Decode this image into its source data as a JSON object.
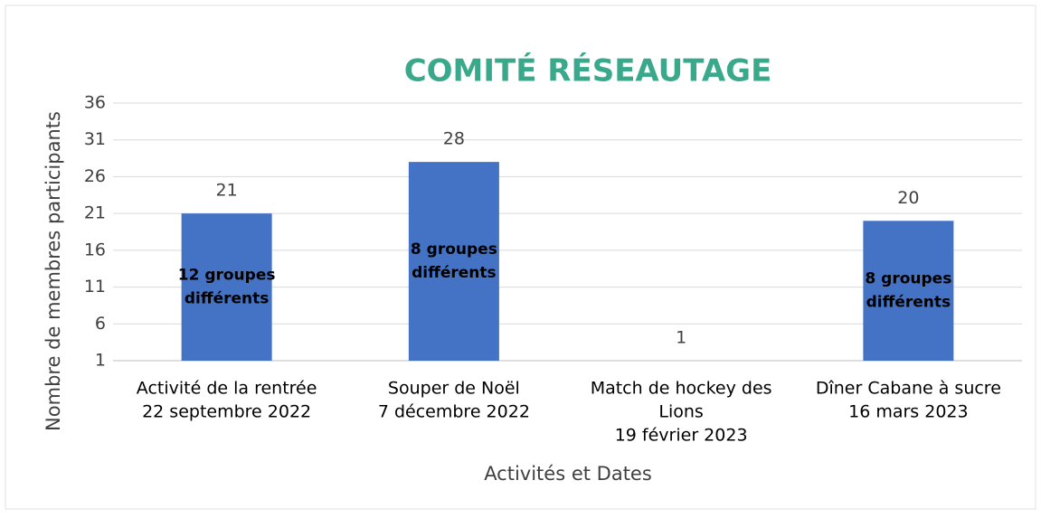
{
  "chart_data": {
    "type": "bar",
    "title": "COMITÉ RÉSEAUTAGE",
    "x_label": "Activités et Dates",
    "y_label": "Nombre de membres participants",
    "categories": [
      [
        "Activité de la rentrée",
        "22 septembre 2022"
      ],
      [
        "Souper de Noël",
        "7 décembre 2022"
      ],
      [
        "Match de hockey des",
        "Lions",
        "19 février 2023"
      ],
      [
        "Dîner Cabane à sucre",
        "16 mars 2023"
      ]
    ],
    "values": [
      21,
      28,
      1,
      20
    ],
    "annotations": [
      [
        "12 groupes",
        "différents"
      ],
      [
        "8 groupes",
        "différents"
      ],
      null,
      [
        "8 groupes",
        "différents"
      ]
    ],
    "color": "#4472c4",
    "title_color": "#3aa88a",
    "ylim": [
      1,
      36
    ],
    "yticks": [
      1,
      6,
      11,
      16,
      21,
      26,
      31,
      36
    ],
    "grid": true
  }
}
